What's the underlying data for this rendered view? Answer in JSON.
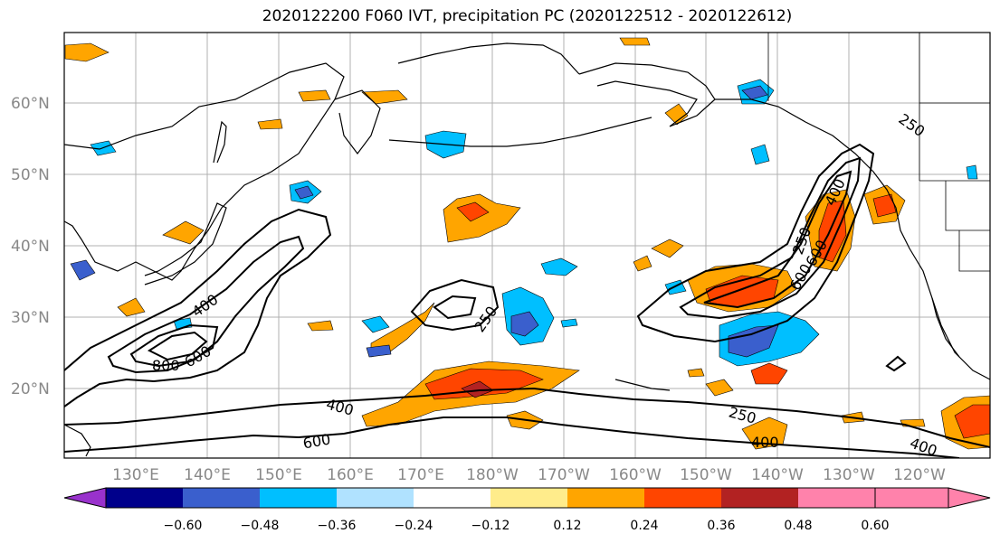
{
  "title": "2020122200 F060 IVT, precipitation PC (2020122512 - 2020122612)",
  "lat_labels": [
    "60°N",
    "50°N",
    "40°N",
    "30°N",
    "20°N"
  ],
  "lon_labels": [
    "130°E",
    "140°E",
    "150°E",
    "160°E",
    "170°E",
    "180°W",
    "170°W",
    "160°W",
    "150°W",
    "140°W",
    "130°W",
    "120°W"
  ],
  "ivt_contour_labels": [
    "250",
    "250",
    "250",
    "250",
    "400",
    "400",
    "400",
    "400",
    "400",
    "600",
    "600",
    "600",
    "600",
    "800"
  ],
  "colorbar": {
    "tick_labels": [
      "−0.60",
      "−0.48",
      "−0.36",
      "−0.24",
      "−0.12",
      "0.12",
      "0.24",
      "0.36",
      "0.48",
      "0.60"
    ],
    "colors": [
      "#9932cc",
      "#00008b",
      "#3a5fcd",
      "#00bfff",
      "#b0e2ff",
      "#ffffff",
      "#ffec8b",
      "#ffa500",
      "#ff4500",
      "#b22222",
      "#ff82ab"
    ]
  }
}
